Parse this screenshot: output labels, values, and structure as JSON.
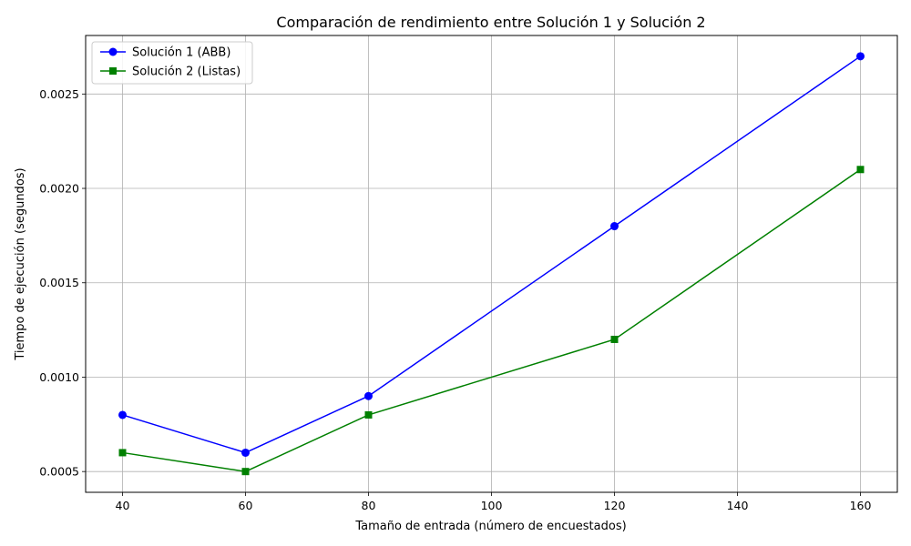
{
  "chart_data": {
    "type": "line",
    "title": "Comparación de rendimiento entre Solución 1 y Solución 2",
    "xlabel": "Tamaño de entrada (número de encuestados)",
    "ylabel": "Tiempo de ejecución (segundos)",
    "x": [
      40,
      60,
      80,
      120,
      160
    ],
    "xlim": [
      34,
      166
    ],
    "ylim": [
      0.00039,
      0.00281
    ],
    "xticks": [
      40,
      60,
      80,
      100,
      120,
      140,
      160
    ],
    "xtick_labels": [
      "40",
      "60",
      "80",
      "100",
      "120",
      "140",
      "160"
    ],
    "yticks": [
      0.0005,
      0.001,
      0.0015,
      0.002,
      0.0025
    ],
    "ytick_labels": [
      "0.0005",
      "0.0010",
      "0.0015",
      "0.0020",
      "0.0025"
    ],
    "grid": true,
    "legend_position": "top-left",
    "series": [
      {
        "name": "Solución 1 (ABB)",
        "values": [
          0.0008,
          0.0006,
          0.0009,
          0.0018,
          0.0027
        ],
        "color": "#0000ff",
        "marker": "circle"
      },
      {
        "name": "Solución 2 (Listas)",
        "values": [
          0.0006,
          0.0005,
          0.0008,
          0.0012,
          0.0021
        ],
        "color": "#008000",
        "marker": "square"
      }
    ]
  }
}
